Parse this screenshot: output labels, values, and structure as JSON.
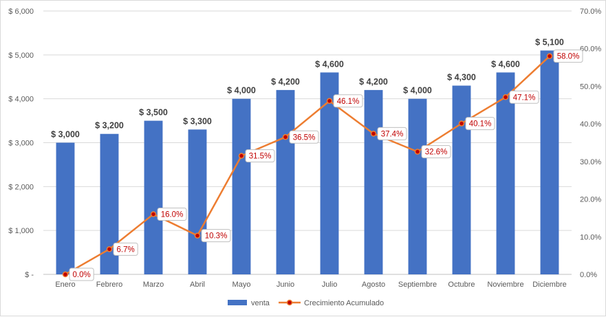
{
  "chart_data": {
    "type": "bar",
    "categories": [
      "Enero",
      "Febrero",
      "Marzo",
      "Abril",
      "Mayo",
      "Junio",
      "Julio",
      "Agosto",
      "Septiembre",
      "Octubre",
      "Noviembre",
      "Diciembre"
    ],
    "series": [
      {
        "name": "venta",
        "type": "bar",
        "axis": "left",
        "values": [
          3000,
          3200,
          3500,
          3300,
          4000,
          4200,
          4600,
          4200,
          4000,
          4300,
          4600,
          5100
        ],
        "labels": [
          "$ 3,000",
          "$ 3,200",
          "$ 3,500",
          "$ 3,300",
          "$ 4,000",
          "$ 4,200",
          "$ 4,600",
          "$ 4,200",
          "$ 4,000",
          "$ 4,300",
          "$ 4,600",
          "$ 5,100"
        ],
        "color": "#4472c4"
      },
      {
        "name": "Crecimiento Acumulado",
        "type": "line",
        "axis": "right",
        "values": [
          0.0,
          6.7,
          16.0,
          10.3,
          31.5,
          36.5,
          46.1,
          37.4,
          32.6,
          40.1,
          47.1,
          58.0
        ],
        "labels": [
          "0.0%",
          "6.7%",
          "16.0%",
          "10.3%",
          "31.5%",
          "36.5%",
          "46.1%",
          "37.4%",
          "32.6%",
          "40.1%",
          "47.1%",
          "58.0%"
        ],
        "color": "#ed7d31",
        "marker_color": "#c00000"
      }
    ],
    "y_left": {
      "ylim": [
        0,
        6000
      ],
      "ticks": [
        0,
        1000,
        2000,
        3000,
        4000,
        5000,
        6000
      ],
      "tick_labels": [
        "$ -",
        "$ 1,000",
        "$ 2,000",
        "$ 3,000",
        "$ 4,000",
        "$ 5,000",
        "$ 6,000"
      ]
    },
    "y_right": {
      "ylim": [
        0,
        70
      ],
      "ticks": [
        0,
        10,
        20,
        30,
        40,
        50,
        60,
        70
      ],
      "tick_labels": [
        "0.0%",
        "10.0%",
        "20.0%",
        "30.0%",
        "40.0%",
        "50.0%",
        "60.0%",
        "70.0%"
      ]
    },
    "grid": true,
    "legend": "bottom",
    "title": "",
    "xlabel": "",
    "ylabel": ""
  }
}
